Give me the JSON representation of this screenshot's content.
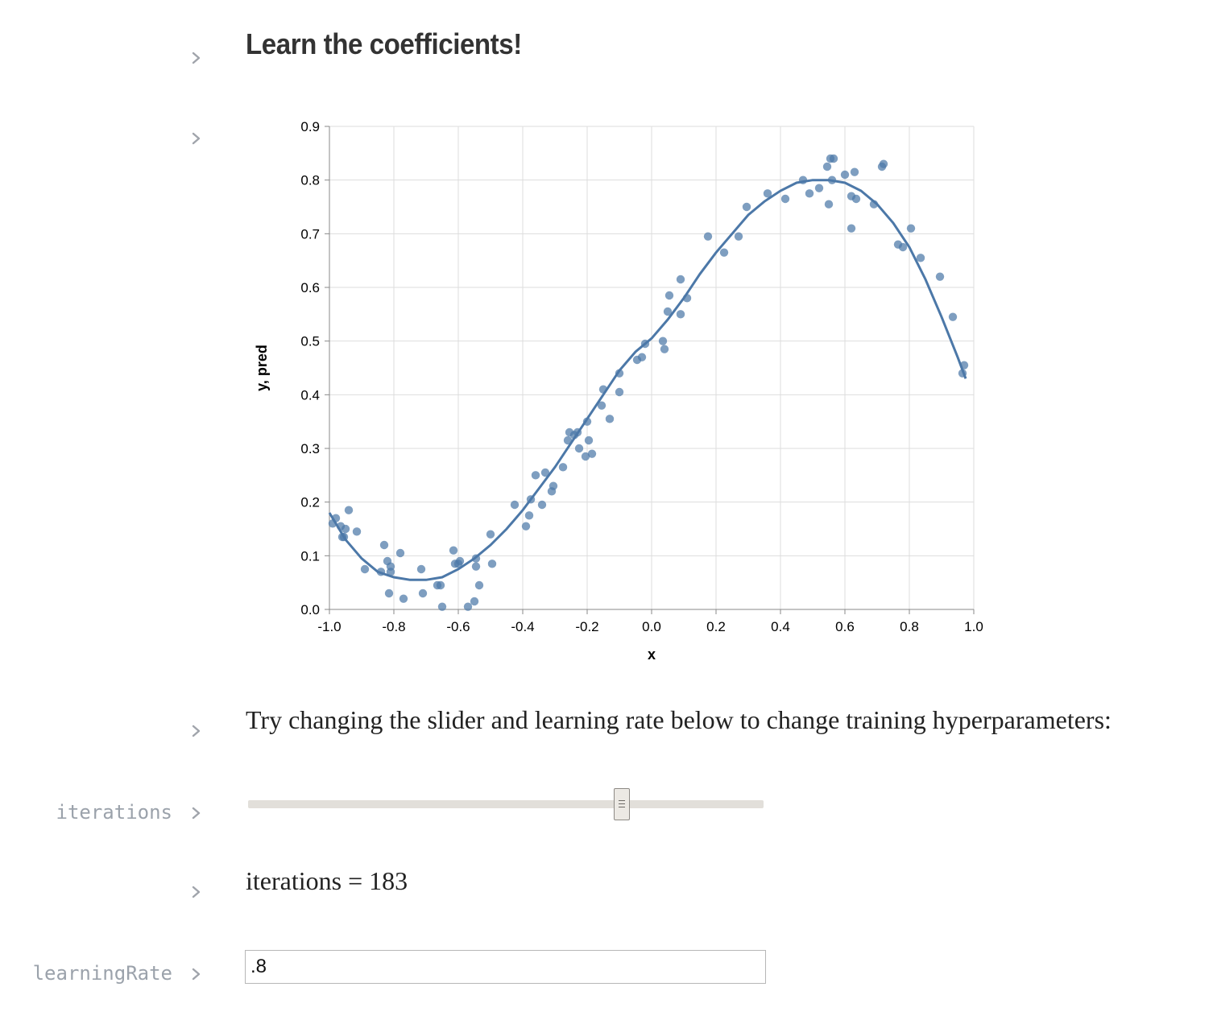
{
  "cells": {
    "title": "Learn the coefficients!",
    "instructions": "Try changing the slider and learning rate below to change training hyperparameters:",
    "iterations_label": "iterations",
    "iterations_output": "iterations = 183",
    "learning_rate_label": "learningRate",
    "learning_rate_value": ".8"
  },
  "slider": {
    "min": 0,
    "max": 250,
    "value": 183
  },
  "icons": {
    "cell_toggle": "chevron-right-icon"
  },
  "colors": {
    "series": "#4c78a8",
    "points": "#4c78a8",
    "gutter_text": "#9ba2ab"
  },
  "chart_data": {
    "type": "scatter+line",
    "xlabel": "x",
    "ylabel": "y, pred",
    "xlim": [
      -1.0,
      1.0
    ],
    "ylim": [
      0.0,
      0.9
    ],
    "xticks": [
      "-1.0",
      "-0.8",
      "-0.6",
      "-0.4",
      "-0.2",
      "0.0",
      "0.2",
      "0.4",
      "0.6",
      "0.8",
      "1.0"
    ],
    "yticks": [
      "0.0",
      "0.1",
      "0.2",
      "0.3",
      "0.4",
      "0.5",
      "0.6",
      "0.7",
      "0.8",
      "0.9"
    ],
    "grid": true,
    "points": [
      [
        -0.99,
        0.16
      ],
      [
        -0.98,
        0.17
      ],
      [
        -0.965,
        0.155
      ],
      [
        -0.96,
        0.135
      ],
      [
        -0.955,
        0.135
      ],
      [
        -0.95,
        0.15
      ],
      [
        -0.94,
        0.185
      ],
      [
        -0.915,
        0.145
      ],
      [
        -0.89,
        0.075
      ],
      [
        -0.84,
        0.07
      ],
      [
        -0.83,
        0.12
      ],
      [
        -0.82,
        0.09
      ],
      [
        -0.815,
        0.03
      ],
      [
        -0.81,
        0.08
      ],
      [
        -0.81,
        0.07
      ],
      [
        -0.78,
        0.105
      ],
      [
        -0.77,
        0.02
      ],
      [
        -0.715,
        0.075
      ],
      [
        -0.71,
        0.03
      ],
      [
        -0.665,
        0.045
      ],
      [
        -0.655,
        0.045
      ],
      [
        -0.65,
        0.005
      ],
      [
        -0.615,
        0.11
      ],
      [
        -0.61,
        0.085
      ],
      [
        -0.6,
        0.085
      ],
      [
        -0.595,
        0.09
      ],
      [
        -0.57,
        0.005
      ],
      [
        -0.55,
        0.015
      ],
      [
        -0.545,
        0.095
      ],
      [
        -0.545,
        0.08
      ],
      [
        -0.535,
        0.045
      ],
      [
        -0.5,
        0.14
      ],
      [
        -0.495,
        0.085
      ],
      [
        -0.425,
        0.195
      ],
      [
        -0.39,
        0.155
      ],
      [
        -0.38,
        0.175
      ],
      [
        -0.375,
        0.205
      ],
      [
        -0.36,
        0.25
      ],
      [
        -0.34,
        0.195
      ],
      [
        -0.33,
        0.255
      ],
      [
        -0.31,
        0.22
      ],
      [
        -0.305,
        0.23
      ],
      [
        -0.275,
        0.265
      ],
      [
        -0.26,
        0.315
      ],
      [
        -0.255,
        0.33
      ],
      [
        -0.24,
        0.325
      ],
      [
        -0.23,
        0.33
      ],
      [
        -0.225,
        0.3
      ],
      [
        -0.205,
        0.285
      ],
      [
        -0.2,
        0.35
      ],
      [
        -0.195,
        0.315
      ],
      [
        -0.185,
        0.29
      ],
      [
        -0.155,
        0.38
      ],
      [
        -0.15,
        0.41
      ],
      [
        -0.13,
        0.355
      ],
      [
        -0.1,
        0.405
      ],
      [
        -0.1,
        0.44
      ],
      [
        -0.045,
        0.465
      ],
      [
        -0.03,
        0.47
      ],
      [
        -0.02,
        0.495
      ],
      [
        0.035,
        0.5
      ],
      [
        0.04,
        0.485
      ],
      [
        0.05,
        0.555
      ],
      [
        0.055,
        0.585
      ],
      [
        0.09,
        0.55
      ],
      [
        0.09,
        0.615
      ],
      [
        0.11,
        0.58
      ],
      [
        0.175,
        0.695
      ],
      [
        0.225,
        0.665
      ],
      [
        0.27,
        0.695
      ],
      [
        0.295,
        0.75
      ],
      [
        0.36,
        0.775
      ],
      [
        0.415,
        0.765
      ],
      [
        0.47,
        0.8
      ],
      [
        0.49,
        0.775
      ],
      [
        0.52,
        0.785
      ],
      [
        0.545,
        0.825
      ],
      [
        0.55,
        0.755
      ],
      [
        0.555,
        0.84
      ],
      [
        0.56,
        0.8
      ],
      [
        0.565,
        0.84
      ],
      [
        0.6,
        0.81
      ],
      [
        0.62,
        0.77
      ],
      [
        0.62,
        0.71
      ],
      [
        0.63,
        0.815
      ],
      [
        0.635,
        0.765
      ],
      [
        0.69,
        0.755
      ],
      [
        0.715,
        0.825
      ],
      [
        0.72,
        0.83
      ],
      [
        0.765,
        0.68
      ],
      [
        0.78,
        0.675
      ],
      [
        0.805,
        0.71
      ],
      [
        0.835,
        0.655
      ],
      [
        0.895,
        0.62
      ],
      [
        0.935,
        0.545
      ],
      [
        0.965,
        0.44
      ],
      [
        0.97,
        0.455
      ]
    ],
    "pred_line": [
      [
        -1.0,
        0.18
      ],
      [
        -0.95,
        0.13
      ],
      [
        -0.9,
        0.095
      ],
      [
        -0.85,
        0.07
      ],
      [
        -0.8,
        0.06
      ],
      [
        -0.75,
        0.055
      ],
      [
        -0.7,
        0.055
      ],
      [
        -0.65,
        0.06
      ],
      [
        -0.6,
        0.075
      ],
      [
        -0.55,
        0.095
      ],
      [
        -0.5,
        0.12
      ],
      [
        -0.45,
        0.15
      ],
      [
        -0.4,
        0.185
      ],
      [
        -0.35,
        0.225
      ],
      [
        -0.3,
        0.265
      ],
      [
        -0.25,
        0.31
      ],
      [
        -0.2,
        0.355
      ],
      [
        -0.15,
        0.4
      ],
      [
        -0.1,
        0.445
      ],
      [
        -0.05,
        0.48
      ],
      [
        0.0,
        0.505
      ],
      [
        0.05,
        0.54
      ],
      [
        0.1,
        0.58
      ],
      [
        0.15,
        0.625
      ],
      [
        0.2,
        0.665
      ],
      [
        0.25,
        0.7
      ],
      [
        0.3,
        0.735
      ],
      [
        0.35,
        0.76
      ],
      [
        0.4,
        0.78
      ],
      [
        0.45,
        0.795
      ],
      [
        0.5,
        0.8
      ],
      [
        0.55,
        0.8
      ],
      [
        0.6,
        0.795
      ],
      [
        0.65,
        0.78
      ],
      [
        0.7,
        0.755
      ],
      [
        0.75,
        0.72
      ],
      [
        0.8,
        0.675
      ],
      [
        0.85,
        0.615
      ],
      [
        0.9,
        0.545
      ],
      [
        0.95,
        0.47
      ],
      [
        0.975,
        0.43
      ]
    ]
  }
}
